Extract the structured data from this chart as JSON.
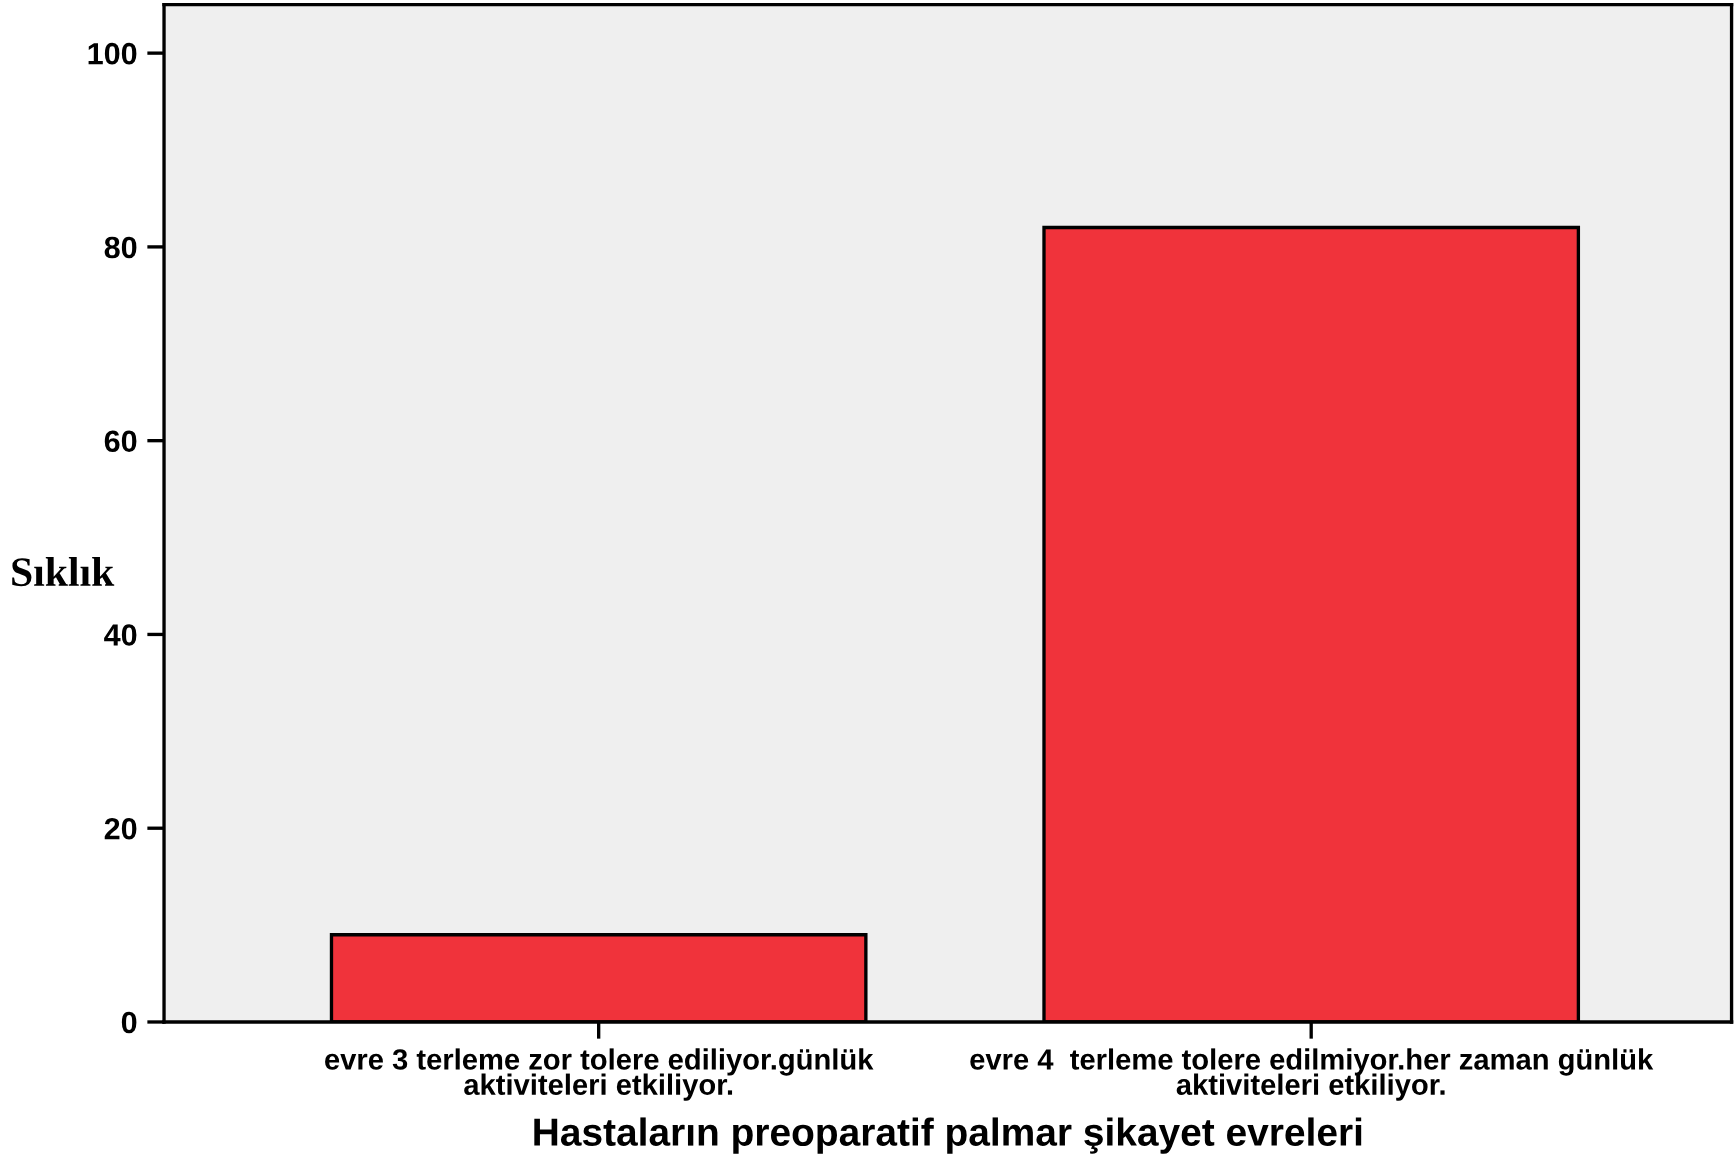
{
  "chart_data": {
    "type": "bar",
    "categories": [
      "evre 3 terleme zor tolere ediliyor.günlük aktiviteleri etkiliyor.",
      "evre 4  terleme tolere edilmiyor.her zaman günlük aktiviteleri etkiliyor."
    ],
    "values": [
      9,
      82
    ],
    "color": "#f0333b",
    "xlabel": "Hastaların preoparatif palmar şikayet evreleri",
    "ylabel": "Sıklık",
    "ylim": [
      0,
      105
    ],
    "yticks": [
      0,
      20,
      40,
      60,
      80,
      100
    ],
    "grid": false,
    "legend": false
  }
}
